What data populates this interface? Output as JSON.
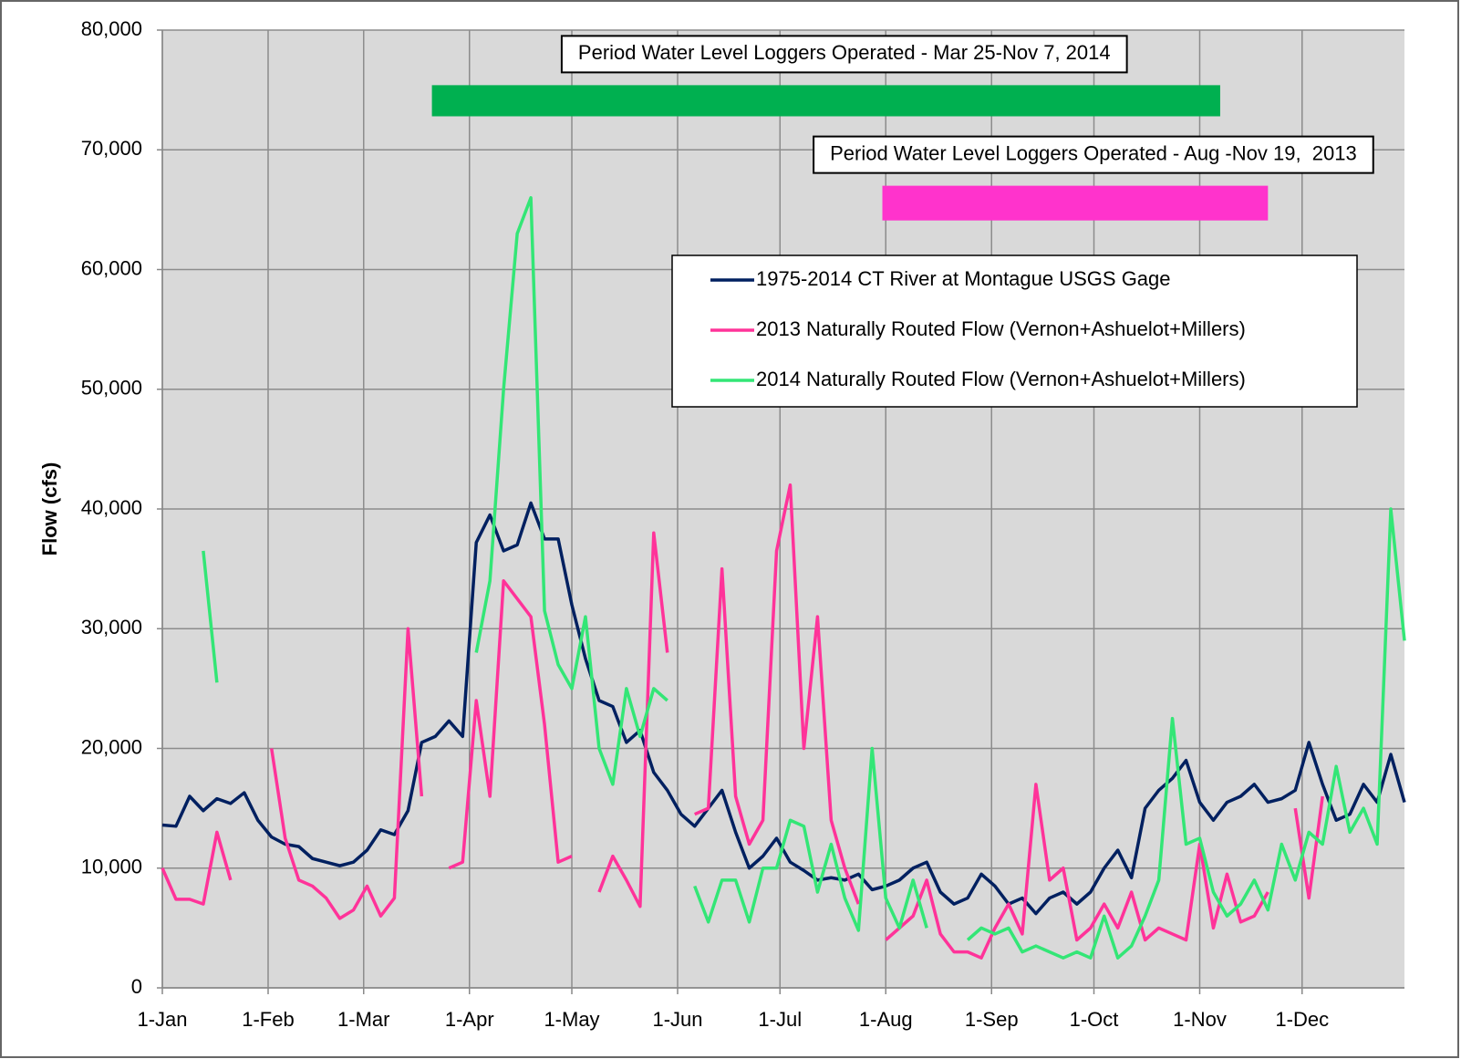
{
  "chart_data": {
    "type": "line",
    "ylabel": "Flow (cfs)",
    "xlim": [
      0,
      364
    ],
    "xticks": [
      {
        "value": 0,
        "label": "1-Jan"
      },
      {
        "value": 31,
        "label": "1-Feb"
      },
      {
        "value": 59,
        "label": "1-Mar"
      },
      {
        "value": 90,
        "label": "1-Apr"
      },
      {
        "value": 120,
        "label": "1-May"
      },
      {
        "value": 151,
        "label": "1-Jun"
      },
      {
        "value": 181,
        "label": "1-Jul"
      },
      {
        "value": 212,
        "label": "1-Aug"
      },
      {
        "value": 243,
        "label": "1-Sep"
      },
      {
        "value": 273,
        "label": "1-Oct"
      },
      {
        "value": 304,
        "label": "1-Nov"
      },
      {
        "value": 334,
        "label": "1-Dec"
      }
    ],
    "ylim": [
      0,
      80000
    ],
    "yticks": [
      0,
      {
        "value": 10000,
        "label": "10,000"
      },
      {
        "value": 20000,
        "label": "20,000"
      },
      {
        "value": 30000,
        "label": "30,000"
      },
      {
        "value": 40000,
        "label": "40,000"
      },
      {
        "value": 50000,
        "label": "50,000"
      },
      {
        "value": 60000,
        "label": "60,000"
      },
      {
        "value": 70000,
        "label": "70,000"
      },
      {
        "value": 80000,
        "label": "80,000"
      }
    ],
    "grid": true,
    "legend": "upper right",
    "x": [
      0,
      4,
      8,
      12,
      16,
      20,
      24,
      28,
      32,
      36,
      40,
      44,
      48,
      52,
      56,
      60,
      64,
      68,
      72,
      76,
      80,
      84,
      88,
      92,
      96,
      100,
      104,
      108,
      112,
      116,
      120,
      124,
      128,
      132,
      136,
      140,
      144,
      148,
      152,
      156,
      160,
      164,
      168,
      172,
      176,
      180,
      184,
      188,
      192,
      196,
      200,
      204,
      208,
      212,
      216,
      220,
      224,
      228,
      232,
      236,
      240,
      244,
      248,
      252,
      256,
      260,
      264,
      268,
      272,
      276,
      280,
      284,
      288,
      292,
      296,
      300,
      304,
      308,
      312,
      316,
      320,
      324,
      328,
      332,
      336,
      340,
      344,
      348,
      352,
      356,
      360,
      364
    ],
    "series": [
      {
        "name": "1975-2014 CT River at Montague USGS Gage",
        "color": "#002060",
        "values": [
          13600,
          13500,
          16000,
          14800,
          15800,
          15400,
          16300,
          14000,
          12600,
          12000,
          11800,
          10800,
          10500,
          10200,
          10500,
          11500,
          13200,
          12800,
          14800,
          20500,
          21000,
          22300,
          21000,
          37200,
          39500,
          36500,
          37000,
          40500,
          37500,
          37500,
          32000,
          27500,
          24000,
          23500,
          20500,
          21500,
          18000,
          16500,
          14500,
          13500,
          15000,
          16500,
          13000,
          10000,
          11000,
          12500,
          10500,
          9800,
          9000,
          9200,
          9000,
          9500,
          8200,
          8500,
          9000,
          10000,
          10500,
          8000,
          7000,
          7500,
          9500,
          8500,
          7000,
          7500,
          6200,
          7500,
          8000,
          7000,
          8000,
          10000,
          11500,
          9200,
          15000,
          16500,
          17500,
          19000,
          15500,
          14000,
          15500,
          16000,
          17000,
          15500,
          15800,
          16500,
          20500,
          17000,
          14000,
          14500,
          17000,
          15500,
          19500,
          15500
        ]
      },
      {
        "name": "2013 Naturally Routed Flow (Vernon+Ashuelot+Millers)",
        "color": "#ff3399",
        "values": [
          10000,
          7400,
          7400,
          7000,
          13000,
          9000,
          null,
          null,
          20000,
          12500,
          9000,
          8500,
          7500,
          5800,
          6500,
          8500,
          6000,
          7500,
          30000,
          16000,
          null,
          10000,
          10500,
          24000,
          16000,
          34000,
          32500,
          31000,
          22000,
          10500,
          11000,
          null,
          8000,
          11000,
          9000,
          6800,
          38000,
          28000,
          null,
          14500,
          15000,
          35000,
          16000,
          12000,
          14000,
          36500,
          42000,
          20000,
          31000,
          14000,
          10000,
          7000,
          null,
          4000,
          5000,
          6000,
          9000,
          4500,
          3000,
          3000,
          2500,
          5000,
          7000,
          4500,
          17000,
          9000,
          10000,
          4000,
          5000,
          7000,
          5000,
          8000,
          4000,
          5000,
          4500,
          4000,
          12000,
          5000,
          9500,
          5500,
          6000,
          8000,
          null,
          15000,
          7500,
          16000,
          null,
          null,
          null,
          null,
          null,
          null
        ]
      },
      {
        "name": "2014 Naturally Routed Flow (Vernon+Ashuelot+Millers)",
        "color": "#33e676",
        "values": [
          null,
          null,
          null,
          36500,
          25500,
          null,
          null,
          null,
          null,
          null,
          null,
          null,
          null,
          null,
          null,
          null,
          null,
          null,
          null,
          null,
          null,
          null,
          null,
          28000,
          34000,
          50000,
          63000,
          66000,
          31500,
          27000,
          25000,
          31000,
          20000,
          17000,
          25000,
          21000,
          25000,
          24000,
          null,
          8500,
          5500,
          9000,
          9000,
          5500,
          10000,
          10000,
          14000,
          13500,
          8000,
          12000,
          7500,
          4800,
          20000,
          7500,
          5000,
          9000,
          5000,
          null,
          null,
          4000,
          5000,
          4500,
          5000,
          3000,
          3500,
          3000,
          2500,
          3000,
          2500,
          6000,
          2500,
          3500,
          6000,
          9000,
          22500,
          12000,
          12500,
          8000,
          6000,
          7000,
          9000,
          6500,
          12000,
          9000,
          13000,
          12000,
          18500,
          13000,
          15000,
          12000,
          40000,
          29000
        ]
      }
    ],
    "annotations": [
      {
        "label": "Period Water Level Loggers Operated - Mar 25-Nov 7, 2014",
        "start": 79,
        "end": 310,
        "ylow": 72800,
        "yhigh": 75400,
        "color": "#00b050"
      },
      {
        "label": "Period Water Level Loggers Operated - Aug -Nov 19,  2013",
        "start": 211,
        "end": 324,
        "ylow": 64100,
        "yhigh": 67000,
        "color": "#ff33cc"
      }
    ]
  }
}
